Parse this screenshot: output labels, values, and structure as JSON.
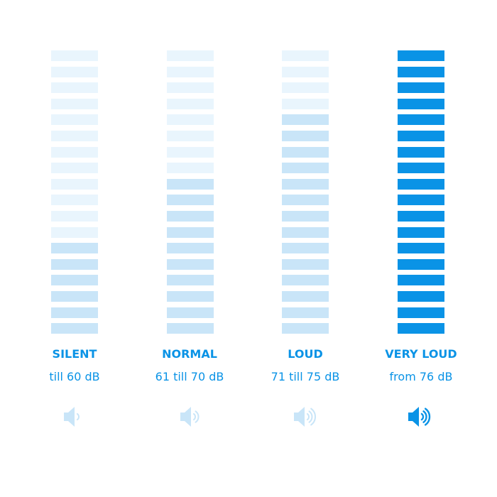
{
  "colors": {
    "off": "#e9f5fd",
    "on_light": "#c9e5f8",
    "on_strong": "#0a93e6",
    "text": "#0a93e6"
  },
  "bar_count": 18,
  "levels": [
    {
      "title": "SILENT",
      "range": "till 60 dB",
      "lit_bars": 6,
      "strong": false,
      "icon": "speaker-1-wave-icon",
      "waves": 1
    },
    {
      "title": "NORMAL",
      "range": "61 till 70 dB",
      "lit_bars": 10,
      "strong": false,
      "icon": "speaker-2-waves-icon",
      "waves": 2
    },
    {
      "title": "LOUD",
      "range": "71 till 75 dB",
      "lit_bars": 14,
      "strong": false,
      "icon": "speaker-3-waves-icon",
      "waves": 3
    },
    {
      "title": "VERY LOUD",
      "range": "from 76 dB",
      "lit_bars": 18,
      "strong": true,
      "icon": "speaker-3-waves-icon",
      "waves": 3
    }
  ]
}
